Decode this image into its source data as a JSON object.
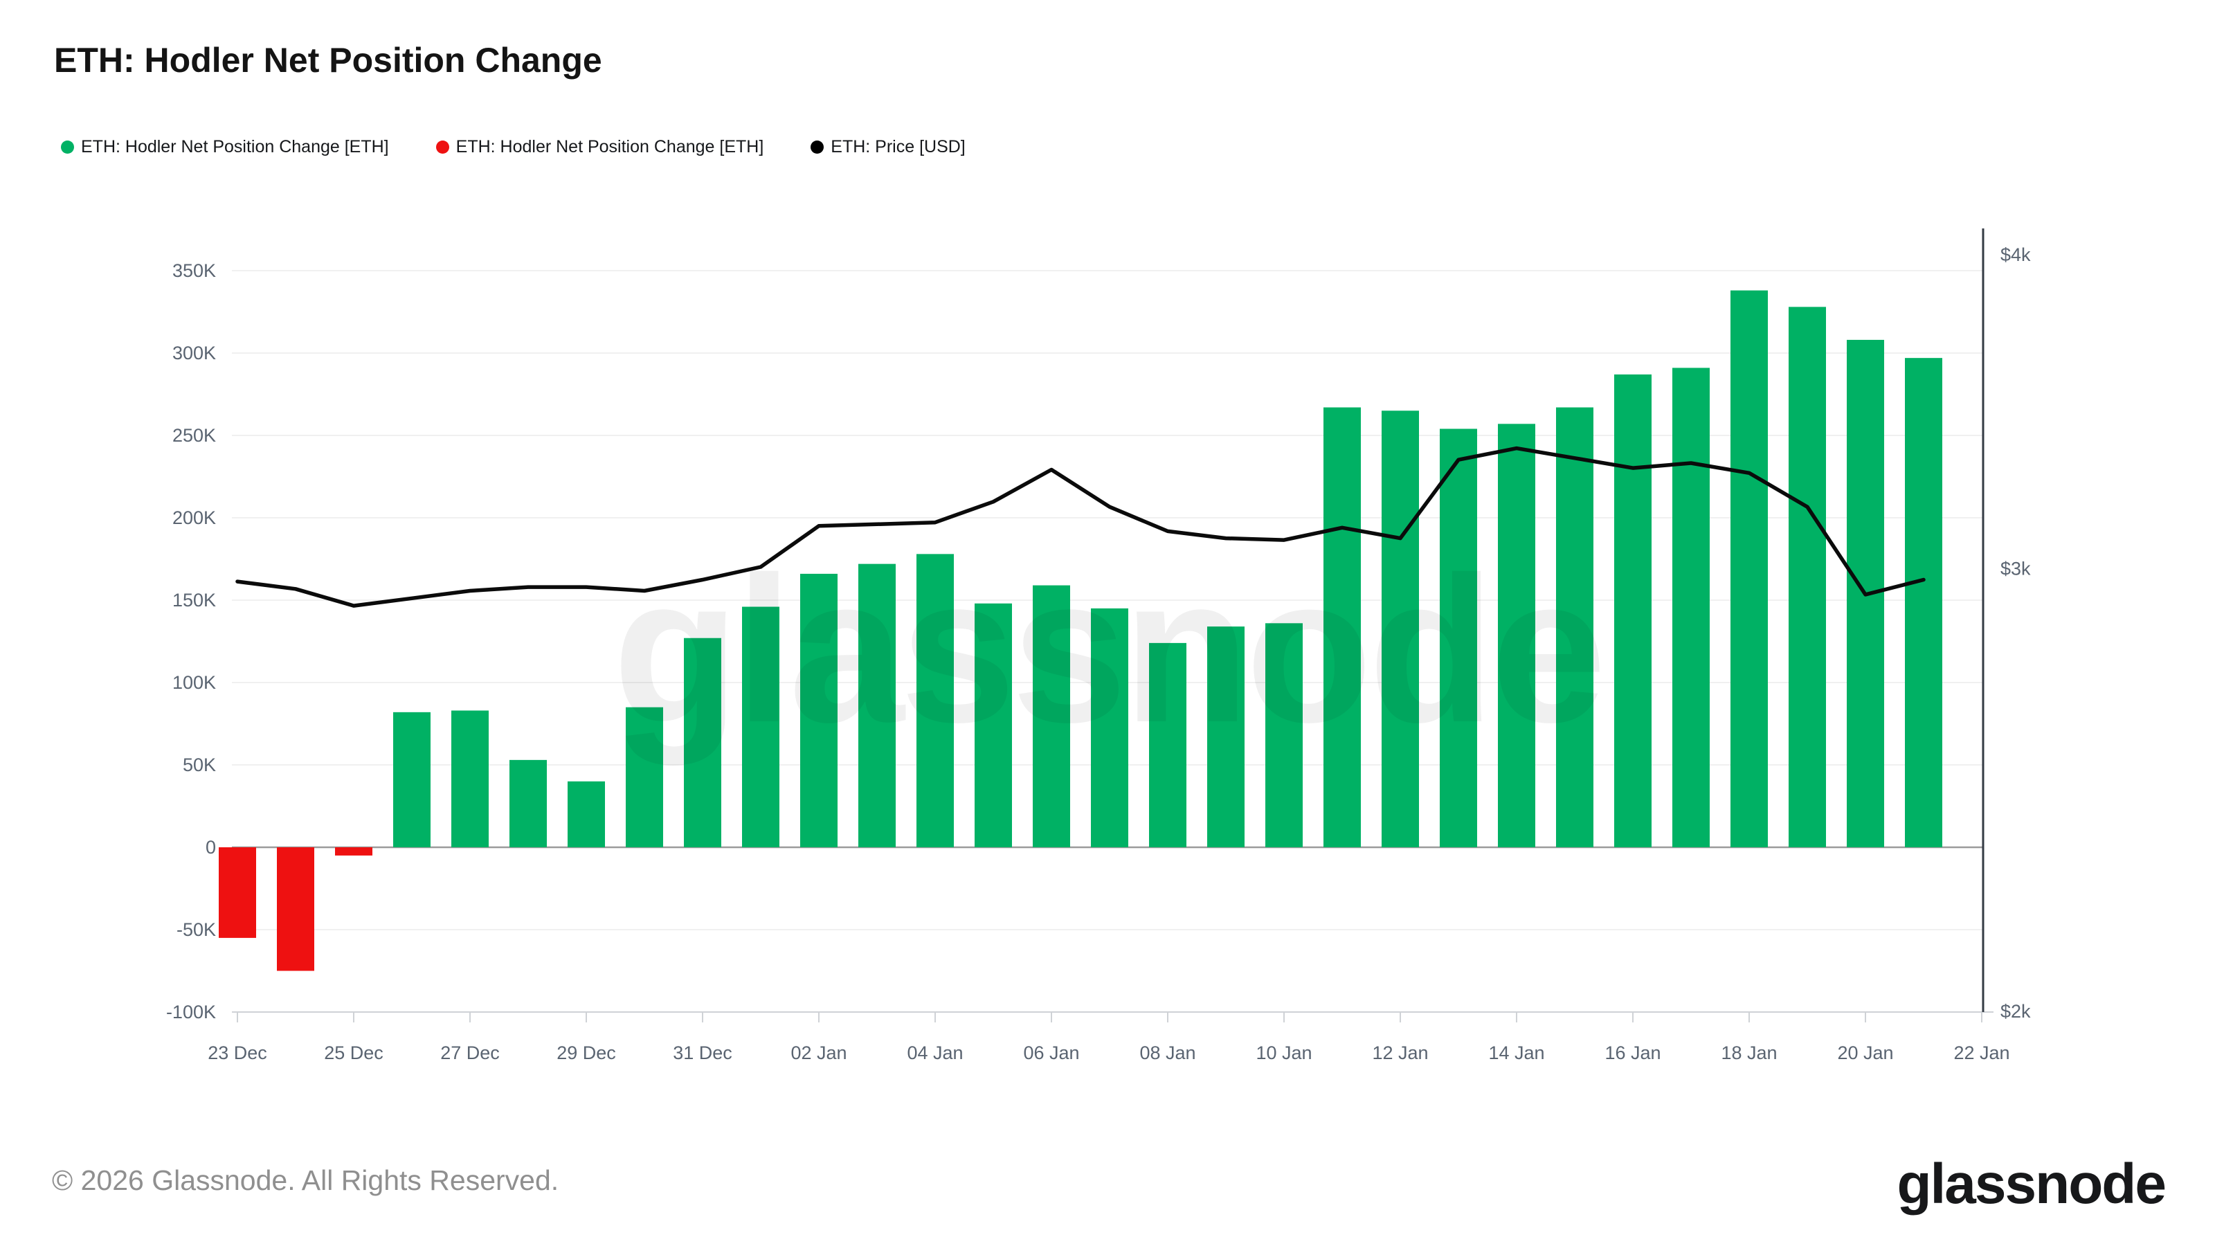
{
  "page": {
    "title": "ETH: Hodler Net Position Change",
    "footer_copyright": "© 2026 Glassnode. All Rights Reserved.",
    "brand_logo": "glassnode",
    "watermark": "glassnode"
  },
  "legend": {
    "items": [
      {
        "label": "ETH: Hodler Net Position Change [ETH]",
        "color": "#00b164"
      },
      {
        "label": "ETH: Hodler Net Position Change [ETH]",
        "color": "#ee1111"
      },
      {
        "label": "ETH: Price [USD]",
        "color": "#000000"
      }
    ]
  },
  "colors": {
    "bar_positive": "#00b164",
    "bar_negative": "#ee1111",
    "price_line": "#0b0b0b",
    "grid_line": "#f0f0f0",
    "zero_line": "#9b9b9b",
    "axis_baseline": "#cfd2d6",
    "right_axis_line": "#343b44",
    "tick_label": "#5a6471",
    "watermark": "rgba(0,0,0,0.06)"
  },
  "chart_data": {
    "type": "bar",
    "title": "ETH: Hodler Net Position Change",
    "legend_position": "top-left",
    "grid": true,
    "categories": [
      "23 Dec",
      "24 Dec",
      "25 Dec",
      "26 Dec",
      "27 Dec",
      "28 Dec",
      "29 Dec",
      "30 Dec",
      "31 Dec",
      "01 Jan",
      "02 Jan",
      "03 Jan",
      "04 Jan",
      "05 Jan",
      "06 Jan",
      "07 Jan",
      "08 Jan",
      "09 Jan",
      "10 Jan",
      "11 Jan",
      "12 Jan",
      "13 Jan",
      "14 Jan",
      "15 Jan",
      "16 Jan",
      "17 Jan",
      "18 Jan",
      "19 Jan",
      "20 Jan",
      "21 Jan"
    ],
    "series": [
      {
        "name": "ETH: Hodler Net Position Change [ETH]",
        "type": "bar",
        "axis": "left",
        "unit": "ETH",
        "values": [
          -55000,
          -75000,
          -5000,
          82000,
          83000,
          53000,
          40000,
          85000,
          127000,
          146000,
          166000,
          172000,
          178000,
          148000,
          159000,
          145000,
          124000,
          134000,
          136000,
          267000,
          265000,
          254000,
          257000,
          267000,
          287000,
          291000,
          338000,
          328000,
          308000,
          297000
        ]
      },
      {
        "name": "ETH: Price [USD]",
        "type": "line",
        "axis": "right",
        "unit": "USD",
        "values": [
          2965,
          2945,
          2900,
          2920,
          2940,
          2950,
          2950,
          2940,
          2970,
          3005,
          3120,
          3125,
          3130,
          3190,
          3285,
          3175,
          3105,
          3085,
          3080,
          3115,
          3085,
          3315,
          3350,
          3320,
          3290,
          3305,
          3275,
          3175,
          2930,
          2970
        ]
      }
    ],
    "left_axis": {
      "range": [
        -100000,
        350000
      ],
      "tick_values": [
        350000,
        300000,
        250000,
        200000,
        150000,
        100000,
        50000,
        0,
        -50000,
        -100000
      ],
      "tick_labels": [
        "350K",
        "300K",
        "250K",
        "200K",
        "150K",
        "100K",
        "50K",
        "0",
        "-50K",
        "-100K"
      ]
    },
    "right_axis": {
      "scale": "log",
      "range": [
        2000,
        4000
      ],
      "tick_values": [
        4000,
        3000,
        2000
      ],
      "tick_labels": [
        "$4k",
        "$3k",
        "$2k"
      ]
    },
    "x_axis": {
      "tick_labels": [
        "23 Dec",
        "25 Dec",
        "27 Dec",
        "29 Dec",
        "31 Dec",
        "02 Jan",
        "04 Jan",
        "06 Jan",
        "08 Jan",
        "10 Jan",
        "12 Jan",
        "14 Jan",
        "16 Jan",
        "18 Jan",
        "20 Jan",
        "22 Jan"
      ],
      "label_every_n_days": 2
    }
  }
}
